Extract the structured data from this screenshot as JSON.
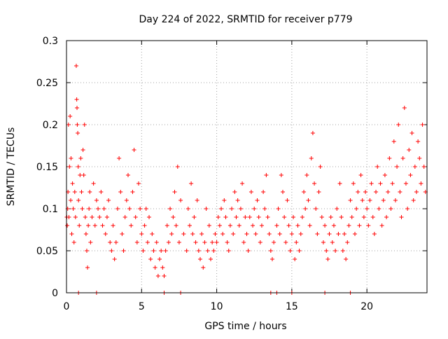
{
  "chart_data": {
    "type": "scatter",
    "title": "Day 224 of 2022, SRMTID for receiver p779",
    "xlabel": "GPS time / hours",
    "ylabel": "SRMTID / TECUs",
    "xlim": [
      0,
      24
    ],
    "ylim": [
      0,
      0.3
    ],
    "xticks": [
      0,
      5,
      10,
      15,
      20
    ],
    "yticks": [
      0,
      0.05,
      0.1,
      0.15,
      0.2,
      0.25,
      0.3
    ],
    "xtick_labels": [
      "0",
      "5",
      "10",
      "15",
      "20"
    ],
    "ytick_labels": [
      "0",
      "0.05",
      "0.1",
      "0.15",
      "0.2",
      "0.25",
      "0.3"
    ],
    "grid": true,
    "marker": "+",
    "series_color": "#ff0000",
    "series": [
      {
        "name": "SRMTID",
        "points": [
          [
            0.02,
            0.09
          ],
          [
            0.05,
            0.08
          ],
          [
            0.08,
            0.1
          ],
          [
            0.1,
            0.12
          ],
          [
            0.13,
            0.2
          ],
          [
            0.16,
            0.09
          ],
          [
            0.2,
            0.15
          ],
          [
            0.24,
            0.21
          ],
          [
            0.28,
            0.11
          ],
          [
            0.3,
            0.16
          ],
          [
            0.35,
            0.07
          ],
          [
            0.4,
            0.13
          ],
          [
            0.45,
            0.1
          ],
          [
            0.5,
            0.06
          ],
          [
            0.55,
            0.12
          ],
          [
            0.6,
            0.09
          ],
          [
            0.65,
            0.27
          ],
          [
            0.68,
            0.23
          ],
          [
            0.7,
            0.22
          ],
          [
            0.72,
            0.2
          ],
          [
            0.75,
            0.19
          ],
          [
            0.78,
            0.15
          ],
          [
            0.8,
            0.11
          ],
          [
            0.85,
            0.08
          ],
          [
            0.9,
            0.14
          ],
          [
            0.95,
            0.16
          ],
          [
            1.0,
            0.12
          ],
          [
            1.05,
            0.1
          ],
          [
            1.1,
            0.17
          ],
          [
            1.15,
            0.14
          ],
          [
            1.2,
            0.2
          ],
          [
            1.25,
            0.09
          ],
          [
            1.3,
            0.07
          ],
          [
            1.35,
            0.05
          ],
          [
            1.4,
            0.03
          ],
          [
            1.45,
            0.08
          ],
          [
            1.5,
            0.1
          ],
          [
            1.55,
            0.12
          ],
          [
            1.6,
            0.06
          ],
          [
            1.7,
            0.09
          ],
          [
            1.8,
            0.13
          ],
          [
            1.9,
            0.08
          ],
          [
            2.0,
            0.11
          ],
          [
            2.1,
            0.1
          ],
          [
            2.2,
            0.09
          ],
          [
            2.3,
            0.12
          ],
          [
            2.4,
            0.08
          ],
          [
            2.5,
            0.1
          ],
          [
            2.6,
            0.07
          ],
          [
            2.7,
            0.09
          ],
          [
            2.8,
            0.11
          ],
          [
            2.9,
            0.06
          ],
          [
            3.0,
            0.05
          ],
          [
            3.1,
            0.08
          ],
          [
            3.2,
            0.04
          ],
          [
            3.3,
            0.06
          ],
          [
            3.4,
            0.1
          ],
          [
            3.5,
            0.16
          ],
          [
            3.6,
            0.12
          ],
          [
            3.7,
            0.07
          ],
          [
            3.8,
            0.05
          ],
          [
            3.9,
            0.09
          ],
          [
            4.0,
            0.11
          ],
          [
            4.1,
            0.14
          ],
          [
            4.2,
            0.1
          ],
          [
            4.3,
            0.08
          ],
          [
            4.4,
            0.12
          ],
          [
            4.5,
            0.17
          ],
          [
            4.6,
            0.09
          ],
          [
            4.7,
            0.06
          ],
          [
            4.8,
            0.13
          ],
          [
            4.9,
            0.1
          ],
          [
            5.0,
            0.07
          ],
          [
            5.1,
            0.05
          ],
          [
            5.2,
            0.08
          ],
          [
            5.3,
            0.1
          ],
          [
            5.4,
            0.06
          ],
          [
            5.5,
            0.09
          ],
          [
            5.6,
            0.04
          ],
          [
            5.7,
            0.07
          ],
          [
            5.8,
            0.05
          ],
          [
            5.9,
            0.03
          ],
          [
            6.0,
            0.06
          ],
          [
            6.1,
            0.02
          ],
          [
            6.2,
            0.04
          ],
          [
            6.3,
            0.05
          ],
          [
            6.4,
            0.03
          ],
          [
            6.5,
            0.02
          ],
          [
            6.6,
            0.05
          ],
          [
            6.7,
            0.08
          ],
          [
            6.8,
            0.06
          ],
          [
            6.9,
            0.1
          ],
          [
            7.0,
            0.07
          ],
          [
            7.1,
            0.09
          ],
          [
            7.2,
            0.12
          ],
          [
            7.3,
            0.08
          ],
          [
            7.4,
            0.15
          ],
          [
            7.5,
            0.06
          ],
          [
            7.6,
            0.11
          ],
          [
            7.8,
            0.07
          ],
          [
            8.0,
            0.05
          ],
          [
            8.1,
            0.1
          ],
          [
            8.2,
            0.08
          ],
          [
            8.3,
            0.13
          ],
          [
            8.4,
            0.07
          ],
          [
            8.5,
            0.09
          ],
          [
            8.6,
            0.06
          ],
          [
            8.7,
            0.11
          ],
          [
            8.8,
            0.05
          ],
          [
            8.9,
            0.04
          ],
          [
            9.0,
            0.07
          ],
          [
            9.1,
            0.03
          ],
          [
            9.2,
            0.06
          ],
          [
            9.3,
            0.1
          ],
          [
            9.4,
            0.05
          ],
          [
            9.5,
            0.08
          ],
          [
            9.6,
            0.04
          ],
          [
            9.7,
            0.06
          ],
          [
            9.8,
            0.05
          ],
          [
            9.9,
            0.07
          ],
          [
            10.0,
            0.06
          ],
          [
            10.1,
            0.09
          ],
          [
            10.2,
            0.08
          ],
          [
            10.3,
            0.1
          ],
          [
            10.4,
            0.07
          ],
          [
            10.5,
            0.11
          ],
          [
            10.6,
            0.09
          ],
          [
            10.7,
            0.06
          ],
          [
            10.8,
            0.05
          ],
          [
            10.9,
            0.08
          ],
          [
            11.0,
            0.1
          ],
          [
            11.1,
            0.07
          ],
          [
            11.2,
            0.12
          ],
          [
            11.3,
            0.09
          ],
          [
            11.4,
            0.11
          ],
          [
            11.5,
            0.08
          ],
          [
            11.6,
            0.1
          ],
          [
            11.7,
            0.13
          ],
          [
            11.8,
            0.06
          ],
          [
            11.9,
            0.09
          ],
          [
            12.0,
            0.07
          ],
          [
            12.1,
            0.05
          ],
          [
            12.2,
            0.09
          ],
          [
            12.3,
            0.12
          ],
          [
            12.4,
            0.08
          ],
          [
            12.5,
            0.1
          ],
          [
            12.6,
            0.07
          ],
          [
            12.7,
            0.11
          ],
          [
            12.8,
            0.09
          ],
          [
            12.9,
            0.06
          ],
          [
            13.0,
            0.08
          ],
          [
            13.1,
            0.12
          ],
          [
            13.2,
            0.1
          ],
          [
            13.3,
            0.14
          ],
          [
            13.4,
            0.09
          ],
          [
            13.5,
            0.07
          ],
          [
            13.6,
            0.05
          ],
          [
            13.7,
            0.04
          ],
          [
            13.8,
            0.06
          ],
          [
            14.0,
            0.08
          ],
          [
            14.1,
            0.1
          ],
          [
            14.2,
            0.07
          ],
          [
            14.3,
            0.14
          ],
          [
            14.4,
            0.12
          ],
          [
            14.5,
            0.09
          ],
          [
            14.6,
            0.06
          ],
          [
            14.7,
            0.11
          ],
          [
            14.8,
            0.08
          ],
          [
            14.9,
            0.05
          ],
          [
            15.0,
            0.07
          ],
          [
            15.1,
            0.09
          ],
          [
            15.2,
            0.04
          ],
          [
            15.3,
            0.06
          ],
          [
            15.4,
            0.08
          ],
          [
            15.5,
            0.05
          ],
          [
            15.6,
            0.07
          ],
          [
            15.7,
            0.09
          ],
          [
            15.8,
            0.12
          ],
          [
            15.9,
            0.1
          ],
          [
            16.0,
            0.14
          ],
          [
            16.1,
            0.11
          ],
          [
            16.2,
            0.08
          ],
          [
            16.3,
            0.16
          ],
          [
            16.4,
            0.19
          ],
          [
            16.5,
            0.13
          ],
          [
            16.6,
            0.1
          ],
          [
            16.7,
            0.07
          ],
          [
            16.8,
            0.12
          ],
          [
            16.9,
            0.15
          ],
          [
            17.0,
            0.09
          ],
          [
            17.1,
            0.06
          ],
          [
            17.2,
            0.08
          ],
          [
            17.3,
            0.05
          ],
          [
            17.4,
            0.04
          ],
          [
            17.5,
            0.07
          ],
          [
            17.6,
            0.09
          ],
          [
            17.7,
            0.06
          ],
          [
            17.8,
            0.08
          ],
          [
            17.9,
            0.05
          ],
          [
            18.0,
            0.1
          ],
          [
            18.1,
            0.07
          ],
          [
            18.2,
            0.13
          ],
          [
            18.3,
            0.09
          ],
          [
            18.4,
            0.05
          ],
          [
            18.5,
            0.07
          ],
          [
            18.6,
            0.04
          ],
          [
            18.7,
            0.06
          ],
          [
            18.8,
            0.08
          ],
          [
            18.9,
            0.11
          ],
          [
            19.0,
            0.09
          ],
          [
            19.1,
            0.13
          ],
          [
            19.2,
            0.07
          ],
          [
            19.3,
            0.1
          ],
          [
            19.4,
            0.12
          ],
          [
            19.5,
            0.08
          ],
          [
            19.6,
            0.14
          ],
          [
            19.7,
            0.11
          ],
          [
            19.8,
            0.09
          ],
          [
            19.9,
            0.12
          ],
          [
            20.0,
            0.1
          ],
          [
            20.1,
            0.08
          ],
          [
            20.2,
            0.11
          ],
          [
            20.3,
            0.13
          ],
          [
            20.4,
            0.09
          ],
          [
            20.5,
            0.07
          ],
          [
            20.6,
            0.12
          ],
          [
            20.7,
            0.15
          ],
          [
            20.8,
            0.1
          ],
          [
            20.9,
            0.13
          ],
          [
            21.0,
            0.08
          ],
          [
            21.1,
            0.11
          ],
          [
            21.2,
            0.14
          ],
          [
            21.3,
            0.09
          ],
          [
            21.4,
            0.12
          ],
          [
            21.5,
            0.16
          ],
          [
            21.6,
            0.1
          ],
          [
            21.7,
            0.13
          ],
          [
            21.8,
            0.18
          ],
          [
            21.9,
            0.11
          ],
          [
            22.0,
            0.15
          ],
          [
            22.1,
            0.2
          ],
          [
            22.2,
            0.12
          ],
          [
            22.3,
            0.09
          ],
          [
            22.4,
            0.16
          ],
          [
            22.5,
            0.22
          ],
          [
            22.6,
            0.13
          ],
          [
            22.7,
            0.1
          ],
          [
            22.8,
            0.17
          ],
          [
            22.9,
            0.14
          ],
          [
            23.0,
            0.19
          ],
          [
            23.1,
            0.11
          ],
          [
            23.2,
            0.15
          ],
          [
            23.3,
            0.12
          ],
          [
            23.4,
            0.18
          ],
          [
            23.5,
            0.16
          ],
          [
            23.6,
            0.13
          ],
          [
            23.7,
            0.2
          ],
          [
            23.8,
            0.15
          ],
          [
            23.9,
            0.12
          ],
          [
            0.8,
            0
          ],
          [
            2.0,
            0
          ],
          [
            6.5,
            0
          ],
          [
            7.6,
            0
          ],
          [
            13.6,
            0
          ],
          [
            14.0,
            0
          ],
          [
            15.0,
            0
          ],
          [
            17.2,
            0
          ],
          [
            18.9,
            0
          ]
        ]
      }
    ]
  }
}
